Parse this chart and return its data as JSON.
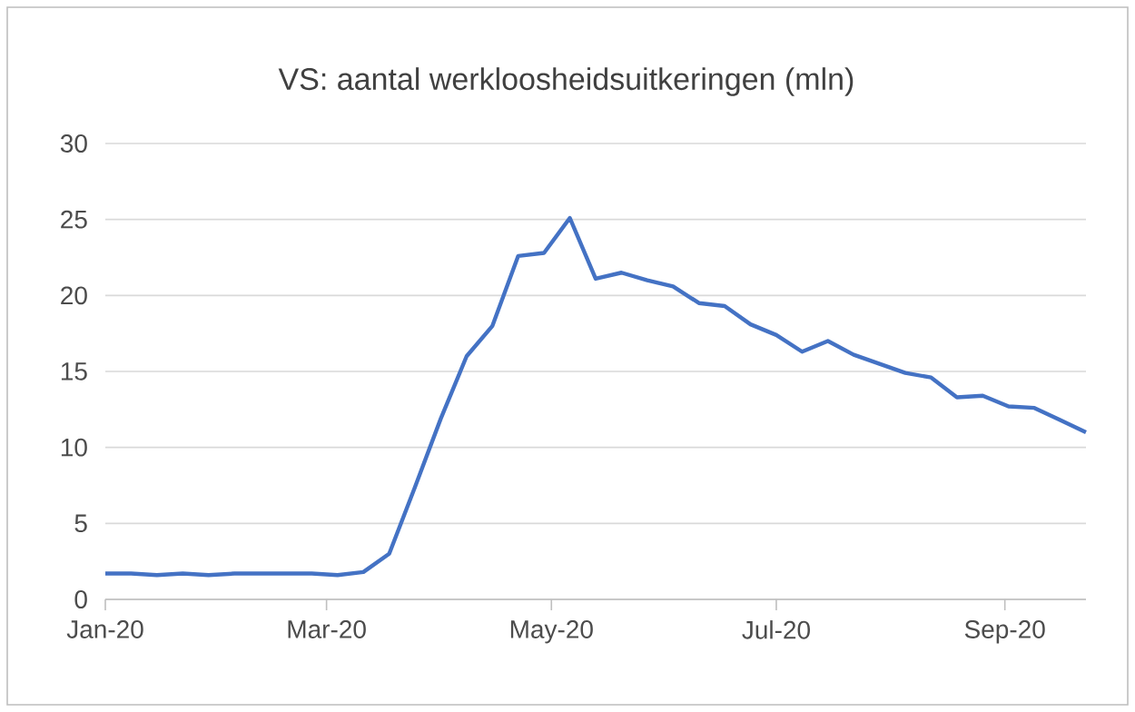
{
  "chart_data": {
    "type": "line",
    "title": "VS: aantal werkloosheidsuitkeringen (mln)",
    "x": [
      "2020-01-04",
      "2020-01-11",
      "2020-01-18",
      "2020-01-25",
      "2020-02-01",
      "2020-02-08",
      "2020-02-15",
      "2020-02-22",
      "2020-02-29",
      "2020-03-07",
      "2020-03-14",
      "2020-03-21",
      "2020-03-28",
      "2020-04-04",
      "2020-04-11",
      "2020-04-18",
      "2020-04-25",
      "2020-05-02",
      "2020-05-09",
      "2020-05-16",
      "2020-05-23",
      "2020-05-30",
      "2020-06-06",
      "2020-06-13",
      "2020-06-20",
      "2020-06-27",
      "2020-07-04",
      "2020-07-11",
      "2020-07-18",
      "2020-07-25",
      "2020-08-01",
      "2020-08-08",
      "2020-08-15",
      "2020-08-22",
      "2020-08-29",
      "2020-09-05",
      "2020-09-12",
      "2020-09-19",
      "2020-09-26"
    ],
    "series": [
      {
        "color": "#4472c4",
        "values": [
          1.7,
          1.7,
          1.6,
          1.7,
          1.6,
          1.7,
          1.7,
          1.7,
          1.7,
          1.6,
          1.8,
          3.0,
          7.4,
          11.9,
          16.0,
          18.0,
          22.6,
          22.8,
          25.1,
          21.1,
          21.5,
          21.0,
          20.6,
          19.5,
          19.3,
          18.1,
          17.4,
          16.3,
          17.0,
          16.1,
          15.5,
          14.9,
          14.6,
          13.3,
          13.4,
          12.7,
          12.6,
          11.8,
          11.0
        ]
      }
    ],
    "xlim": [
      "2020-01-04",
      "2020-09-26"
    ],
    "xticks": [
      {
        "value": "2020-01-04",
        "label": "Jan-20"
      },
      {
        "value": "2020-03-04",
        "label": "Mar-20"
      },
      {
        "value": "2020-05-04",
        "label": "May-20"
      },
      {
        "value": "2020-07-04",
        "label": "Jul-20"
      },
      {
        "value": "2020-09-04",
        "label": "Sep-20"
      }
    ],
    "ylim": [
      0,
      30
    ],
    "yticks": [
      0,
      5,
      10,
      15,
      20,
      25,
      30
    ],
    "grid": "y",
    "marker": "none",
    "line_style": "solid"
  }
}
